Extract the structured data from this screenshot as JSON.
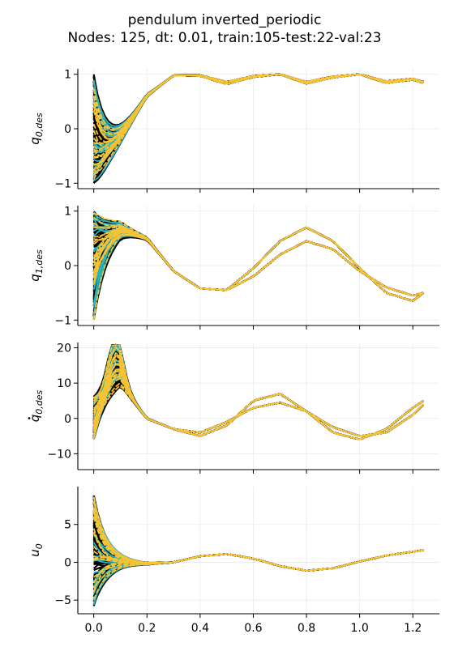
{
  "figure": {
    "title_line1": "pendulum inverted_periodic",
    "title_line2": "Nodes: 125, dt: 0.01, train:105-test:22-val:23"
  },
  "colors": {
    "train": "#000000",
    "test": "#2bb5bf",
    "val": "#f9c232",
    "grid": "#e9e9e9"
  },
  "chart_data": [
    {
      "type": "line",
      "ylabel_base": "q",
      "ylabel_sub": "0,des",
      "ylabel_dot": false,
      "ylim": [
        -1.1,
        1.1
      ],
      "yticks": [
        -1,
        0,
        1
      ],
      "xlim": [
        -0.06,
        1.3
      ],
      "xticks": [
        0.0,
        0.2,
        0.4,
        0.6,
        0.8,
        1.0,
        1.2
      ],
      "show_xticklabels": false,
      "grid": true,
      "series_groups": {
        "train": 105,
        "test": 22,
        "val": 23
      },
      "reference_curves": [
        {
          "name": "",
          "x": [
            0.0,
            0.1,
            0.2,
            0.3,
            0.4,
            0.5,
            0.6,
            0.7,
            0.8,
            0.9,
            1.0,
            1.1,
            1.2,
            1.24
          ],
          "y": [
            -0.95,
            -0.2,
            0.6,
            0.98,
            0.97,
            0.82,
            0.95,
            1.0,
            0.83,
            0.94,
            1.0,
            0.84,
            0.9,
            0.84
          ]
        },
        {
          "name": "",
          "x": [
            0.0,
            0.1,
            0.2,
            0.3,
            0.4,
            0.5,
            0.6,
            0.7,
            0.8,
            0.9,
            1.0,
            1.1,
            1.2,
            1.24
          ],
          "y": [
            -0.95,
            -0.2,
            0.6,
            0.98,
            0.98,
            0.86,
            0.97,
            1.0,
            0.86,
            0.96,
            1.0,
            0.87,
            0.92,
            0.86
          ]
        }
      ]
    },
    {
      "type": "line",
      "ylabel_base": "q",
      "ylabel_sub": "1,des",
      "ylabel_dot": false,
      "ylim": [
        -1.1,
        1.1
      ],
      "yticks": [
        -1,
        0,
        1
      ],
      "xlim": [
        -0.06,
        1.3
      ],
      "xticks": [
        0.0,
        0.2,
        0.4,
        0.6,
        0.8,
        1.0,
        1.2
      ],
      "show_xticklabels": false,
      "grid": true,
      "series_groups": {
        "train": 105,
        "test": 22,
        "val": 23
      },
      "reference_curves": [
        {
          "name": "",
          "x": [
            0.0,
            0.1,
            0.2,
            0.3,
            0.4,
            0.5,
            0.6,
            0.7,
            0.8,
            0.9,
            1.0,
            1.1,
            1.2,
            1.24
          ],
          "y": [
            0.5,
            0.7,
            0.5,
            -0.1,
            -0.42,
            -0.45,
            -0.05,
            0.45,
            0.7,
            0.45,
            -0.05,
            -0.5,
            -0.65,
            -0.5
          ]
        },
        {
          "name": "",
          "x": [
            0.0,
            0.1,
            0.2,
            0.3,
            0.4,
            0.5,
            0.6,
            0.7,
            0.8,
            0.9,
            1.0,
            1.1,
            1.2,
            1.24
          ],
          "y": [
            0.5,
            0.7,
            0.5,
            -0.1,
            -0.42,
            -0.45,
            -0.2,
            0.2,
            0.45,
            0.3,
            -0.1,
            -0.4,
            -0.55,
            -0.5
          ]
        }
      ]
    },
    {
      "type": "line",
      "ylabel_base": "q",
      "ylabel_sub": "0,des",
      "ylabel_dot": true,
      "ylim": [
        -14.5,
        21.5
      ],
      "yticks": [
        -10,
        0,
        10,
        20
      ],
      "xlim": [
        -0.06,
        1.3
      ],
      "xticks": [
        0.0,
        0.2,
        0.4,
        0.6,
        0.8,
        1.0,
        1.2
      ],
      "show_xticklabels": false,
      "grid": true,
      "series_groups": {
        "train": 105,
        "test": 22,
        "val": 23
      },
      "reference_curves": [
        {
          "name": "",
          "x": [
            0.0,
            0.1,
            0.2,
            0.3,
            0.4,
            0.5,
            0.6,
            0.7,
            0.8,
            0.9,
            1.0,
            1.1,
            1.2,
            1.24
          ],
          "y": [
            5,
            10,
            0,
            -3,
            -5,
            -2,
            5,
            7,
            2,
            -4,
            -6,
            -3,
            3,
            5
          ]
        },
        {
          "name": "",
          "x": [
            0.0,
            0.1,
            0.2,
            0.3,
            0.4,
            0.5,
            0.6,
            0.7,
            0.8,
            0.9,
            1.0,
            1.1,
            1.2,
            1.24
          ],
          "y": [
            5,
            10,
            0,
            -3,
            -4,
            -1,
            3,
            4.5,
            2,
            -2.5,
            -5,
            -4,
            1,
            4
          ]
        }
      ]
    },
    {
      "type": "line",
      "ylabel_base": "u",
      "ylabel_sub": "0",
      "ylabel_dot": false,
      "ylim": [
        -6.8,
        10.0
      ],
      "yticks": [
        -5,
        0,
        5
      ],
      "xlim": [
        -0.06,
        1.3
      ],
      "xticks": [
        0.0,
        0.2,
        0.4,
        0.6,
        0.8,
        1.0,
        1.2
      ],
      "xticklabels": [
        "0.0",
        "0.2",
        "0.4",
        "0.6",
        "0.8",
        "1.0",
        "1.2"
      ],
      "show_xticklabels": true,
      "grid": true,
      "series_groups": {
        "train": 105,
        "test": 22,
        "val": 23
      },
      "reference_curves": [
        {
          "name": "",
          "x": [
            0.0,
            0.1,
            0.2,
            0.3,
            0.4,
            0.5,
            0.6,
            0.7,
            0.8,
            0.9,
            1.0,
            1.1,
            1.2,
            1.24
          ],
          "y": [
            0,
            0,
            -0.2,
            0,
            0.8,
            1.1,
            0.5,
            -0.5,
            -1.1,
            -0.8,
            0.1,
            0.9,
            1.4,
            1.6
          ]
        }
      ]
    }
  ]
}
